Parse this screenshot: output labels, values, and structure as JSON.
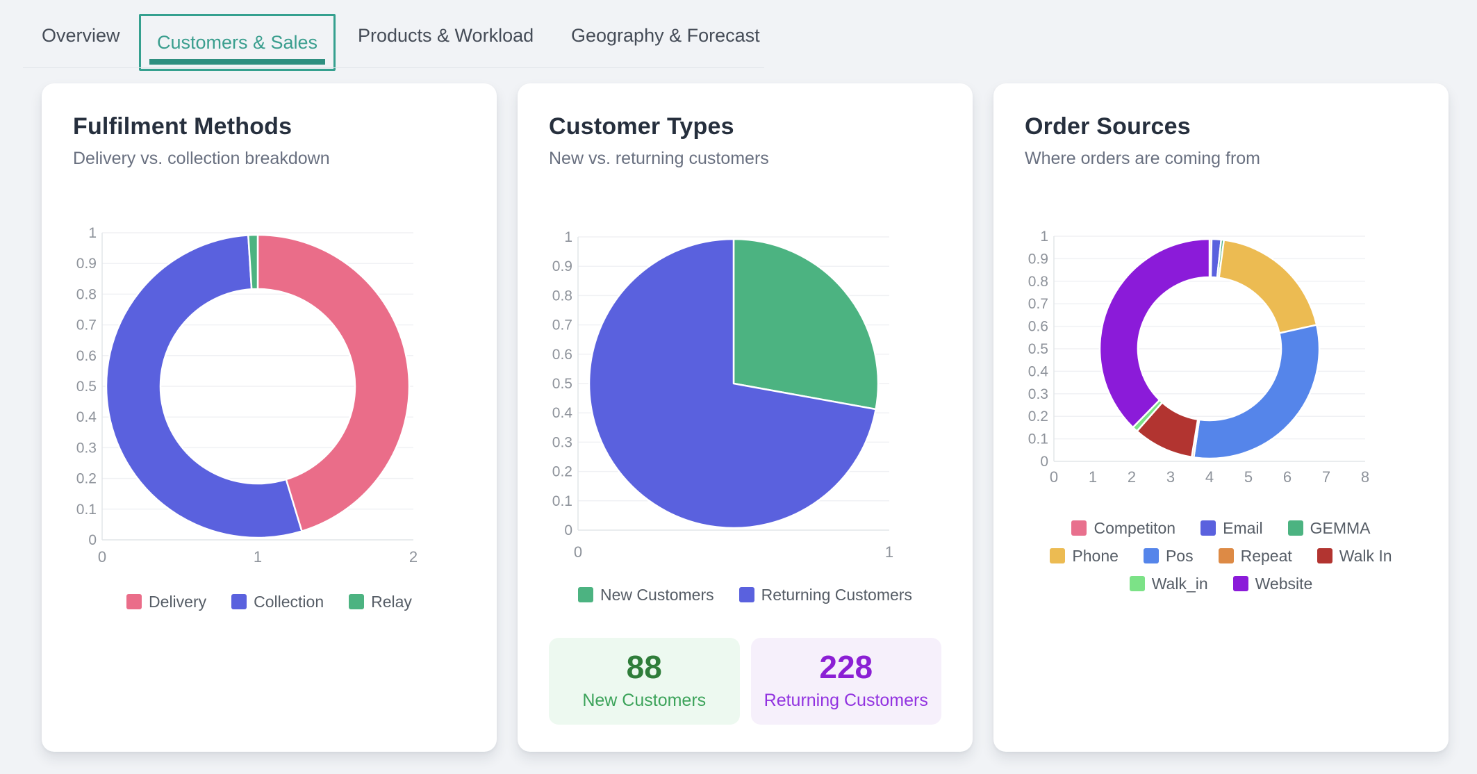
{
  "accent": {
    "teal": "#35a08f",
    "teal_dark": "#2e8f80"
  },
  "tabs": {
    "items": [
      {
        "label": "Overview",
        "active": false
      },
      {
        "label": "Customers & Sales",
        "active": true
      },
      {
        "label": "Products & Workload",
        "active": false
      },
      {
        "label": "Geography & Forecast",
        "active": false
      }
    ]
  },
  "cards": [
    {
      "title": "Fulfilment Methods",
      "subtitle": "Delivery vs. collection breakdown"
    },
    {
      "title": "Customer Types",
      "subtitle": "New vs. returning customers",
      "stats": [
        {
          "value": "88",
          "label": "New Customers"
        },
        {
          "value": "228",
          "label": "Returning Customers"
        }
      ]
    },
    {
      "title": "Order Sources",
      "subtitle": "Where orders are coming from"
    }
  ],
  "chart_data": [
    {
      "type": "doughnut",
      "title": "Fulfilment Methods",
      "labels": [
        "Delivery",
        "Collection",
        "Relay"
      ],
      "values_pct": [
        45.3,
        53.7,
        1.0
      ],
      "colors": [
        "#ea6d89",
        "#5a61de",
        "#4cb381"
      ],
      "x_ticks": [
        "0",
        "1",
        "2"
      ],
      "y_ticks": [
        "1",
        "0.9",
        "0.8",
        "0.7",
        "0.6",
        "0.5",
        "0.4",
        "0.3",
        "0.2",
        "0.1",
        "0"
      ],
      "x_range": [
        0,
        2
      ],
      "y_range": [
        0,
        1
      ],
      "grid": "horizontal-only",
      "legend_position": "bottom",
      "start_angle_deg": 0,
      "direction": "clockwise"
    },
    {
      "type": "pie",
      "title": "Customer Types",
      "labels": [
        "New Customers",
        "Returning Customers"
      ],
      "values": [
        88,
        228
      ],
      "colors": [
        "#4cb381",
        "#5a61de"
      ],
      "x_ticks": [
        "0",
        "1"
      ],
      "y_ticks": [
        "1",
        "0.9",
        "0.8",
        "0.7",
        "0.6",
        "0.5",
        "0.4",
        "0.3",
        "0.2",
        "0.1",
        "0"
      ],
      "x_range": [
        0,
        1
      ],
      "y_range": [
        0,
        1
      ],
      "grid": "horizontal-only",
      "legend_position": "bottom",
      "start_angle_deg": 0,
      "direction": "clockwise"
    },
    {
      "type": "doughnut",
      "title": "Order Sources",
      "labels": [
        "Competiton",
        "Email",
        "GEMMA",
        "Phone",
        "Pos",
        "Repeat",
        "Walk In",
        "Walk_in",
        "Website"
      ],
      "values_pct": [
        0.3,
        1.4,
        0.4,
        19.4,
        30.8,
        0.3,
        8.9,
        0.8,
        37.7
      ],
      "colors": [
        "#e8708d",
        "#5a61de",
        "#4cb381",
        "#ecbb52",
        "#5585ea",
        "#dd8a45",
        "#b23430",
        "#7ce287",
        "#8b1bd9"
      ],
      "x_ticks": [
        "0",
        "1",
        "2",
        "3",
        "4",
        "5",
        "6",
        "7",
        "8"
      ],
      "y_ticks": [
        "1",
        "0.9",
        "0.8",
        "0.7",
        "0.6",
        "0.5",
        "0.4",
        "0.3",
        "0.2",
        "0.1",
        "0"
      ],
      "x_range": [
        0,
        8
      ],
      "y_range": [
        0,
        1
      ],
      "grid": "horizontal-only",
      "legend_position": "bottom",
      "start_angle_deg": 0,
      "direction": "clockwise"
    }
  ]
}
